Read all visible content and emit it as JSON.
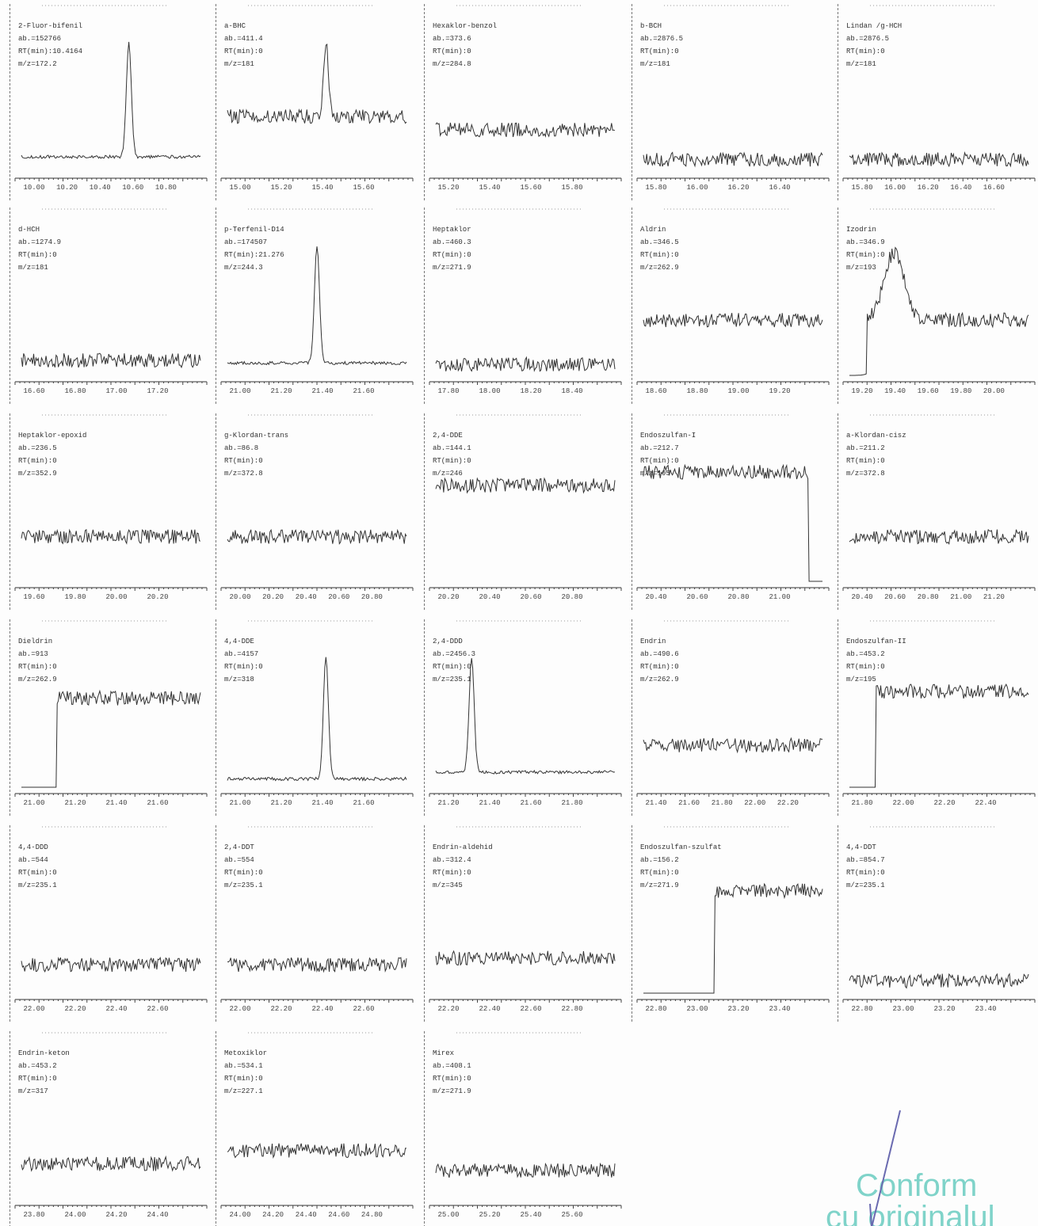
{
  "panels": [
    {
      "name": "2-Fluor-bifenil",
      "ab": "ab.=152766",
      "rt": "RT(min):10.4164",
      "mz": "m/z=172.2",
      "ticks": [
        "10.00",
        "10.20",
        "10.40",
        "10.60",
        "10.80"
      ]
    },
    {
      "name": "a-BHC",
      "ab": "ab.=411.4",
      "rt": "RT(min):0",
      "mz": "m/z=181",
      "ticks": [
        "15.00",
        "15.20",
        "15.40",
        "15.60"
      ]
    },
    {
      "name": "Hexaklor-benzol",
      "ab": "ab.=373.6",
      "rt": "RT(min):0",
      "mz": "m/z=284.8",
      "ticks": [
        "15.20",
        "15.40",
        "15.60",
        "15.80"
      ]
    },
    {
      "name": "b-BCH",
      "ab": "ab.=2876.5",
      "rt": "RT(min):0",
      "mz": "m/z=181",
      "ticks": [
        "15.80",
        "16.00",
        "16.20",
        "16.40"
      ]
    },
    {
      "name": "Lindan /g-HCH",
      "ab": "ab.=2876.5",
      "rt": "RT(min):0",
      "mz": "m/z=181",
      "ticks": [
        "15.80",
        "16.00",
        "16.20",
        "16.40",
        "16.60"
      ]
    },
    {
      "name": "d-HCH",
      "ab": "ab.=1274.9",
      "rt": "RT(min):0",
      "mz": "m/z=181",
      "ticks": [
        "16.60",
        "16.80",
        "17.00",
        "17.20"
      ]
    },
    {
      "name": "p-Terfenil-D14",
      "ab": "ab.=174507",
      "rt": "RT(min):21.276",
      "mz": "m/z=244.3",
      "ticks": [
        "21.00",
        "21.20",
        "21.40",
        "21.60"
      ]
    },
    {
      "name": "Heptaklor",
      "ab": "ab.=460.3",
      "rt": "RT(min):0",
      "mz": "m/z=271.9",
      "ticks": [
        "17.80",
        "18.00",
        "18.20",
        "18.40"
      ]
    },
    {
      "name": "Aldrin",
      "ab": "ab.=346.5",
      "rt": "RT(min):0",
      "mz": "m/z=262.9",
      "ticks": [
        "18.60",
        "18.80",
        "19.00",
        "19.20"
      ]
    },
    {
      "name": "Izodrin",
      "ab": "ab.=346.9",
      "rt": "RT(min):0",
      "mz": "m/z=193",
      "ticks": [
        "19.20",
        "19.40",
        "19.60",
        "19.80",
        "20.00"
      ]
    },
    {
      "name": "Heptaklor-epoxid",
      "ab": "ab.=236.5",
      "rt": "RT(min):0",
      "mz": "m/z=352.9",
      "ticks": [
        "19.60",
        "19.80",
        "20.00",
        "20.20"
      ]
    },
    {
      "name": "g-Klordan-trans",
      "ab": "ab.=86.8",
      "rt": "RT(min):0",
      "mz": "m/z=372.8",
      "ticks": [
        "20.00",
        "20.20",
        "20.40",
        "20.60",
        "20.80"
      ]
    },
    {
      "name": "2,4-DDE",
      "ab": "ab.=144.1",
      "rt": "RT(min):0",
      "mz": "m/z=246",
      "ticks": [
        "20.20",
        "20.40",
        "20.60",
        "20.80"
      ]
    },
    {
      "name": "Endoszulfan-I",
      "ab": "ab.=212.7",
      "rt": "RT(min):0",
      "mz": "m/z=195",
      "ticks": [
        "20.40",
        "20.60",
        "20.80",
        "21.00"
      ]
    },
    {
      "name": "a-Klordan-cisz",
      "ab": "ab.=211.2",
      "rt": "RT(min):0",
      "mz": "m/z=372.8",
      "ticks": [
        "20.40",
        "20.60",
        "20.80",
        "21.00",
        "21.20"
      ]
    },
    {
      "name": "Dieldrin",
      "ab": "ab.=913",
      "rt": "RT(min):0",
      "mz": "m/z=262.9",
      "ticks": [
        "21.00",
        "21.20",
        "21.40",
        "21.60"
      ]
    },
    {
      "name": "4,4-DDE",
      "ab": "ab.=4157",
      "rt": "RT(min):0",
      "mz": "m/z=318",
      "ticks": [
        "21.00",
        "21.20",
        "21.40",
        "21.60"
      ]
    },
    {
      "name": "2,4-DDD",
      "ab": "ab.=2456.3",
      "rt": "RT(min):0",
      "mz": "m/z=235.1",
      "ticks": [
        "21.20",
        "21.40",
        "21.60",
        "21.80"
      ]
    },
    {
      "name": "Endrin",
      "ab": "ab.=490.6",
      "rt": "RT(min):0",
      "mz": "m/z=262.9",
      "ticks": [
        "21.40",
        "21.60",
        "21.80",
        "22.00",
        "22.20"
      ]
    },
    {
      "name": "Endoszulfan-II",
      "ab": "ab.=453.2",
      "rt": "RT(min):0",
      "mz": "m/z=195",
      "ticks": [
        "21.80",
        "22.00",
        "22.20",
        "22.40"
      ]
    },
    {
      "name": "4,4-DDD",
      "ab": "ab.=544",
      "rt": "RT(min):0",
      "mz": "m/z=235.1",
      "ticks": [
        "22.00",
        "22.20",
        "22.40",
        "22.60"
      ]
    },
    {
      "name": "2,4-DDT",
      "ab": "ab.=554",
      "rt": "RT(min):0",
      "mz": "m/z=235.1",
      "ticks": [
        "22.00",
        "22.20",
        "22.40",
        "22.60"
      ]
    },
    {
      "name": "Endrin-aldehid",
      "ab": "ab.=312.4",
      "rt": "RT(min):0",
      "mz": "m/z=345",
      "ticks": [
        "22.20",
        "22.40",
        "22.60",
        "22.80"
      ]
    },
    {
      "name": "Endoszulfan-szulfat",
      "ab": "ab.=156.2",
      "rt": "RT(min):0",
      "mz": "m/z=271.9",
      "ticks": [
        "22.80",
        "23.00",
        "23.20",
        "23.40"
      ]
    },
    {
      "name": "4,4-DDT",
      "ab": "ab.=854.7",
      "rt": "RT(min):0",
      "mz": "m/z=235.1",
      "ticks": [
        "22.80",
        "23.00",
        "23.20",
        "23.40"
      ]
    },
    {
      "name": "Endrin-keton",
      "ab": "ab.=453.2",
      "rt": "RT(min):0",
      "mz": "m/z=317",
      "ticks": [
        "23.80",
        "24.00",
        "24.20",
        "24.40"
      ]
    },
    {
      "name": "Metoxiklor",
      "ab": "ab.=534.1",
      "rt": "RT(min):0",
      "mz": "m/z=227.1",
      "ticks": [
        "24.00",
        "24.20",
        "24.40",
        "24.60",
        "24.80"
      ]
    },
    {
      "name": "Mirex",
      "ab": "ab.=408.1",
      "rt": "RT(min):0",
      "mz": "m/z=271.9",
      "ticks": [
        "25.00",
        "25.20",
        "25.40",
        "25.60"
      ]
    }
  ],
  "stamp": {
    "line1": "Conform",
    "line2": "cu originalul"
  }
}
